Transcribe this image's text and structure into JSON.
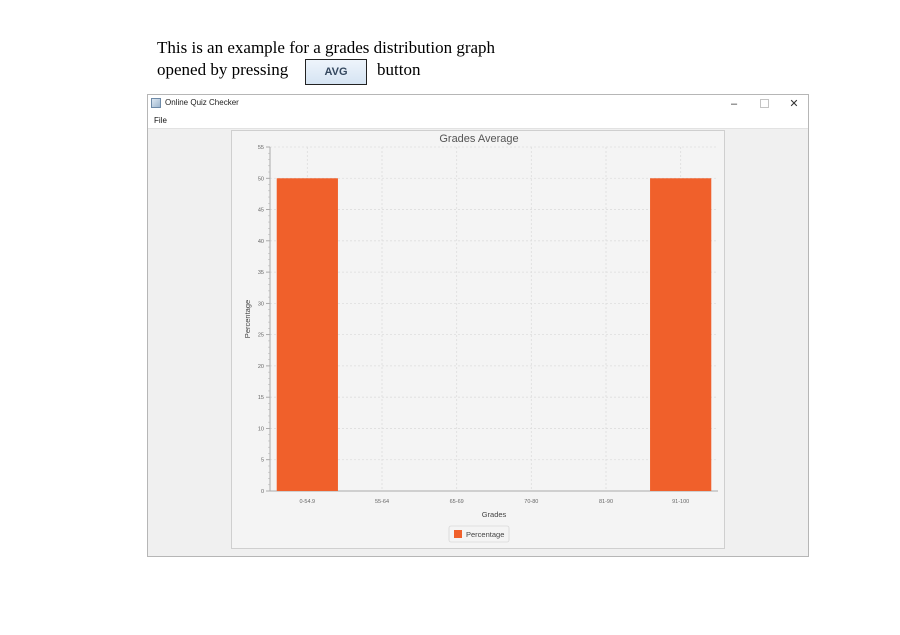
{
  "document": {
    "line1": "This is an example for a grades distribution graph",
    "line2": "opened by pressing",
    "button_label": "AVG",
    "line2_after": "button"
  },
  "window": {
    "title": "Online Quiz Checker",
    "controls": {
      "minimize": "–",
      "close": "✕"
    }
  },
  "menu": {
    "items": [
      "File"
    ]
  },
  "colors": {
    "bar": "#f0602b",
    "panel": "#f4f4f4",
    "grid": "#dddddd"
  },
  "chart_data": {
    "type": "bar",
    "title": "Grades Average",
    "xlabel": "Grades",
    "ylabel": "Percentage",
    "categories": [
      "0-54.9",
      "55-64",
      "65-69",
      "70-80",
      "81-90",
      "91-100"
    ],
    "series": [
      {
        "name": "Percentage",
        "values": [
          50,
          0,
          0,
          0,
          0,
          50
        ]
      }
    ],
    "ylim": [
      0,
      55
    ],
    "yticks": [
      0,
      5,
      10,
      15,
      20,
      25,
      30,
      35,
      40,
      45,
      50,
      55
    ],
    "grid": true,
    "legend": "bottom-center"
  }
}
